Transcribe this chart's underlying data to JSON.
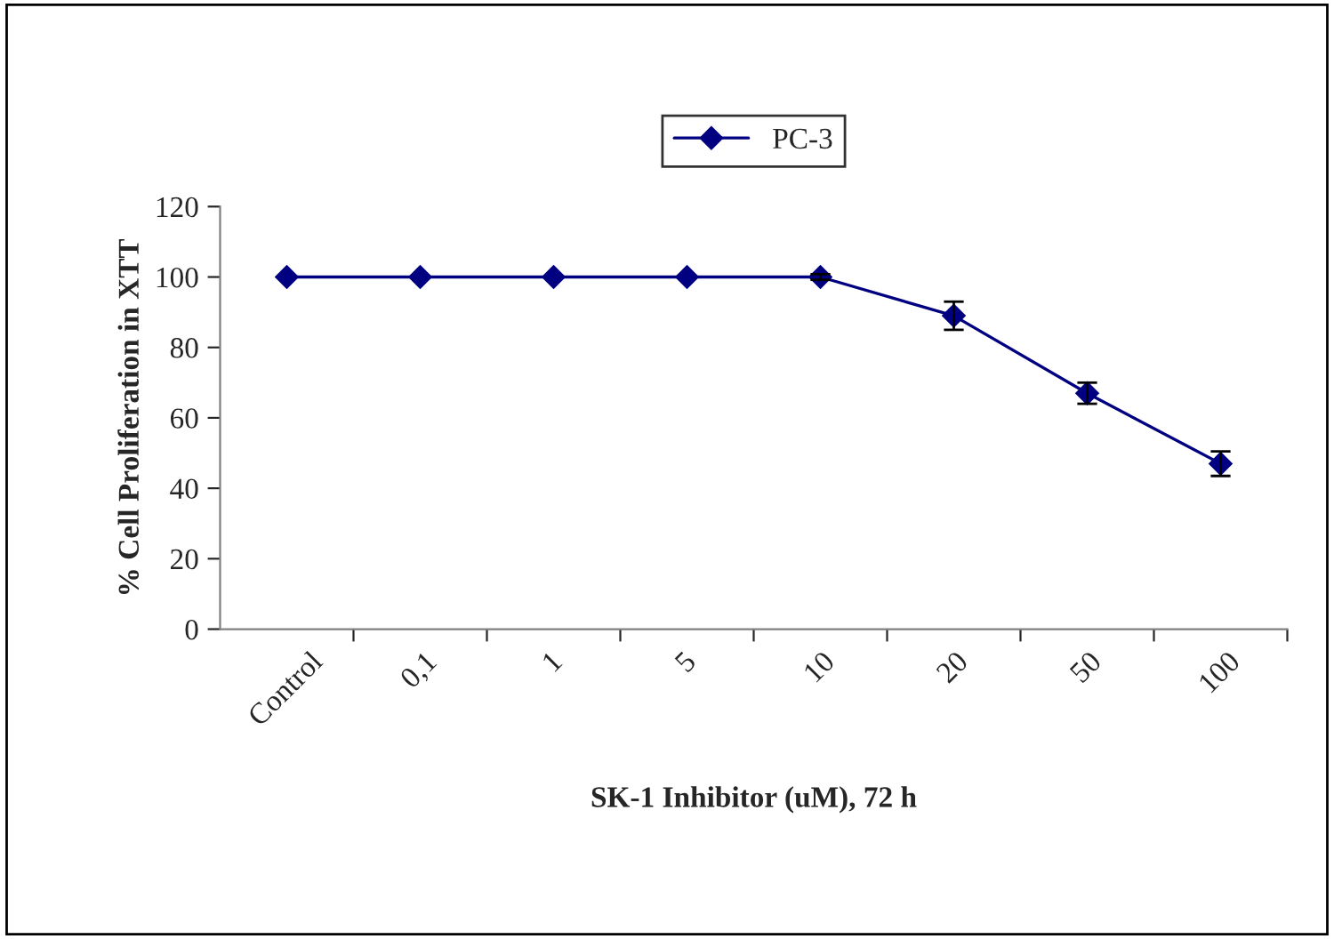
{
  "chart_data": {
    "type": "line",
    "xlabel": "SK-1 Inhibitor (uM), 72 h",
    "ylabel": "% Cell Proliferation in XTT",
    "categories": [
      "Control",
      "0,1",
      "1",
      "5",
      "10",
      "20",
      "50",
      "100"
    ],
    "series": [
      {
        "name": "PC-3",
        "color": "#000080",
        "values": [
          100,
          100,
          100,
          100,
          100,
          89,
          67,
          47
        ],
        "errors": [
          null,
          null,
          null,
          null,
          0.8,
          4,
          3,
          3.5
        ]
      }
    ],
    "ylim": [
      0,
      120
    ],
    "yticks": [
      0,
      20,
      40,
      60,
      80,
      100,
      120
    ],
    "marker": "diamond",
    "line_style": "solid",
    "legend": "top",
    "grid": false
  }
}
